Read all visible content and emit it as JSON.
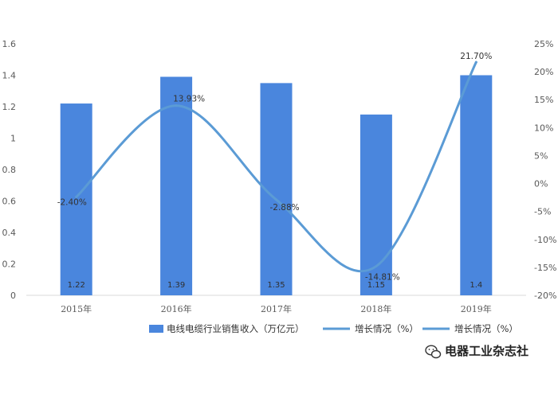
{
  "chart_data": {
    "type": "bar",
    "categories": [
      "2015年",
      "2016年",
      "2017年",
      "2018年",
      "2019年"
    ],
    "series": [
      {
        "name": "电线电缆行业销售收入（万亿元）",
        "type": "bar",
        "axis": "left",
        "values": [
          1.22,
          1.39,
          1.35,
          1.15,
          1.4
        ],
        "labels": [
          "1.22",
          "1.39",
          "1.35",
          "1.15",
          "1.4"
        ],
        "color": "#4a86dd"
      },
      {
        "name": "增长情况（%）",
        "type": "line",
        "axis": "right",
        "values": [
          -2.4,
          13.93,
          -2.88,
          -14.81,
          21.7
        ],
        "labels": [
          "-2.40%",
          "13.93%",
          "-2.88%",
          "-14.81%",
          "21.70%"
        ],
        "color": "#5b9bd5"
      }
    ],
    "legend": {
      "position": "bottom",
      "entries": [
        {
          "label": "电线电缆行业销售收入（万亿元）",
          "marker": "rect",
          "color": "#4a86dd"
        },
        {
          "label": "增长情况（%）",
          "marker": "line",
          "color": "#5b9bd5"
        },
        {
          "label": "增长情况（%）",
          "marker": "line",
          "color": "#5b9bd5"
        }
      ]
    },
    "y_left": {
      "range": [
        0,
        1.6
      ],
      "ticks": [
        {
          "v": 0,
          "label": "0"
        },
        {
          "v": 0.2,
          "label": "0.2"
        },
        {
          "v": 0.4,
          "label": "0.4"
        },
        {
          "v": 0.6,
          "label": "0.6"
        },
        {
          "v": 0.8,
          "label": "0.8"
        },
        {
          "v": 1,
          "label": "1"
        },
        {
          "v": 1.2,
          "label": "1.2"
        },
        {
          "v": 1.4,
          "label": "1.4"
        },
        {
          "v": 1.6,
          "label": "1.6"
        }
      ]
    },
    "y_right": {
      "range": [
        -20,
        25
      ],
      "ticks": [
        {
          "v": -20,
          "label": "-20%"
        },
        {
          "v": -15,
          "label": "-15%"
        },
        {
          "v": -10,
          "label": "-10%"
        },
        {
          "v": -5,
          "label": "-5%"
        },
        {
          "v": 0,
          "label": "0%"
        },
        {
          "v": 5,
          "label": "5%"
        },
        {
          "v": 10,
          "label": "10%"
        },
        {
          "v": 15,
          "label": "15%"
        },
        {
          "v": 20,
          "label": "20%"
        },
        {
          "v": 25,
          "label": "25%"
        }
      ]
    },
    "grid": false,
    "title": ""
  },
  "watermark": {
    "text": "电器工业杂志社",
    "icon": "wechat-icon"
  }
}
